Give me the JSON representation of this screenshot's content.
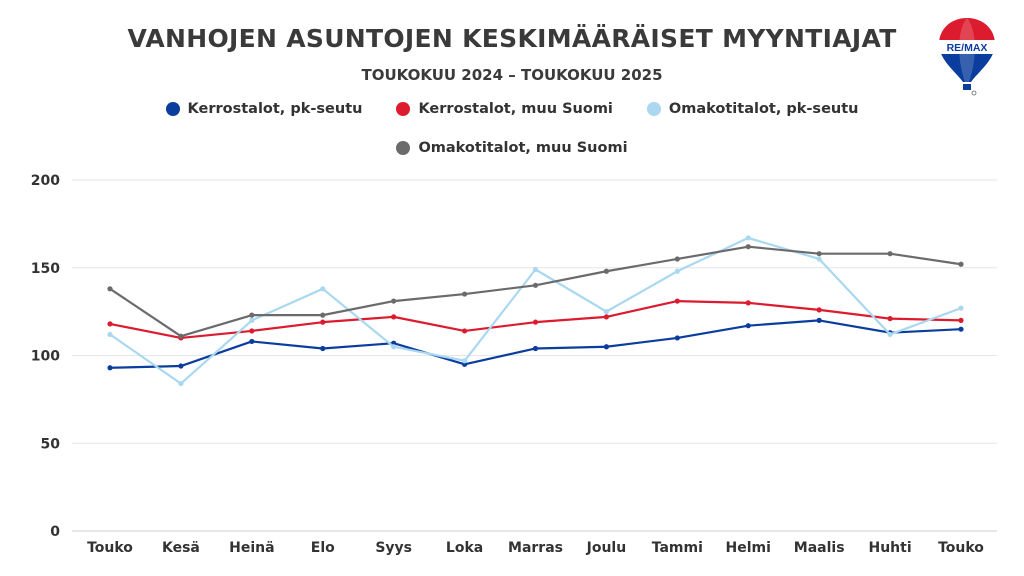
{
  "chart_data": {
    "type": "line",
    "title": "VANHOJEN ASUNTOJEN KESKIMÄÄRÄISET MYYNTIAJAT",
    "subtitle": "TOUKOKUU 2024 – TOUKOKUU 2025",
    "categories": [
      "Touko",
      "Kesä",
      "Heinä",
      "Elo",
      "Syys",
      "Loka",
      "Marras",
      "Joulu",
      "Tammi",
      "Helmi",
      "Maalis",
      "Huhti",
      "Touko"
    ],
    "ylim": [
      0,
      200
    ],
    "yticks": [
      "0",
      "50",
      "100",
      "150",
      "200"
    ],
    "grid": true,
    "legend_position": "top",
    "series": [
      {
        "name": "Kerrostalot, pk-seutu",
        "color": "#0b3d9e",
        "values": [
          93,
          94,
          108,
          104,
          107,
          95,
          104,
          105,
          110,
          117,
          120,
          113,
          115
        ]
      },
      {
        "name": "Kerrostalot, muu Suomi",
        "color": "#dc1c2e",
        "values": [
          118,
          110,
          114,
          119,
          122,
          114,
          119,
          122,
          131,
          130,
          126,
          121,
          120
        ]
      },
      {
        "name": "Omakotitalot, pk-seutu",
        "color": "#a9d8f0",
        "values": [
          112,
          84,
          120,
          138,
          105,
          97,
          149,
          125,
          148,
          167,
          155,
          112,
          127
        ]
      },
      {
        "name": "Omakotitalot, muu Suomi",
        "color": "#6b6b6d",
        "values": [
          138,
          111,
          123,
          123,
          131,
          135,
          140,
          148,
          155,
          162,
          158,
          158,
          152
        ]
      }
    ]
  },
  "logo": {
    "text": "RE/MAX",
    "icon": "balloon-logo-icon"
  }
}
